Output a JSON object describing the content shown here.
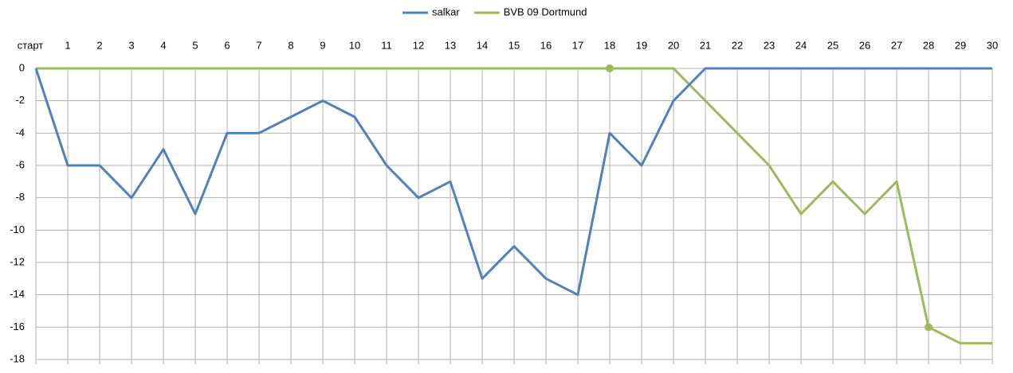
{
  "chart_data": {
    "type": "line",
    "categories": [
      "старт",
      "1",
      "2",
      "3",
      "4",
      "5",
      "6",
      "7",
      "8",
      "9",
      "10",
      "11",
      "12",
      "13",
      "14",
      "15",
      "16",
      "17",
      "18",
      "19",
      "20",
      "21",
      "22",
      "23",
      "24",
      "25",
      "26",
      "27",
      "28",
      "29",
      "30"
    ],
    "series": [
      {
        "name": "salkar",
        "color": "#4f81bd",
        "values": [
          0,
          -6,
          -6,
          -8,
          -5,
          -9,
          -4,
          -4,
          -3,
          -2,
          -3,
          -6,
          -8,
          -7,
          -13,
          -11,
          -13,
          -14,
          -4,
          -6,
          -2,
          0,
          0,
          0,
          0,
          0,
          0,
          0,
          0,
          0,
          0
        ]
      },
      {
        "name": "BVB 09 Dortmund",
        "color": "#9bbb59",
        "values": [
          0,
          0,
          0,
          0,
          0,
          0,
          0,
          0,
          0,
          0,
          0,
          0,
          0,
          0,
          0,
          0,
          0,
          0,
          0,
          0,
          0,
          -2,
          -4,
          -6,
          -9,
          -7,
          -9,
          -7,
          -16,
          -17,
          -17
        ],
        "markers": [
          18,
          28
        ]
      }
    ],
    "ylim": [
      -18,
      0
    ],
    "yticks": [
      0,
      -2,
      -4,
      -6,
      -8,
      -10,
      -12,
      -14,
      -16,
      -18
    ],
    "grid": true,
    "legend": "top",
    "x_axis_position": "top"
  }
}
